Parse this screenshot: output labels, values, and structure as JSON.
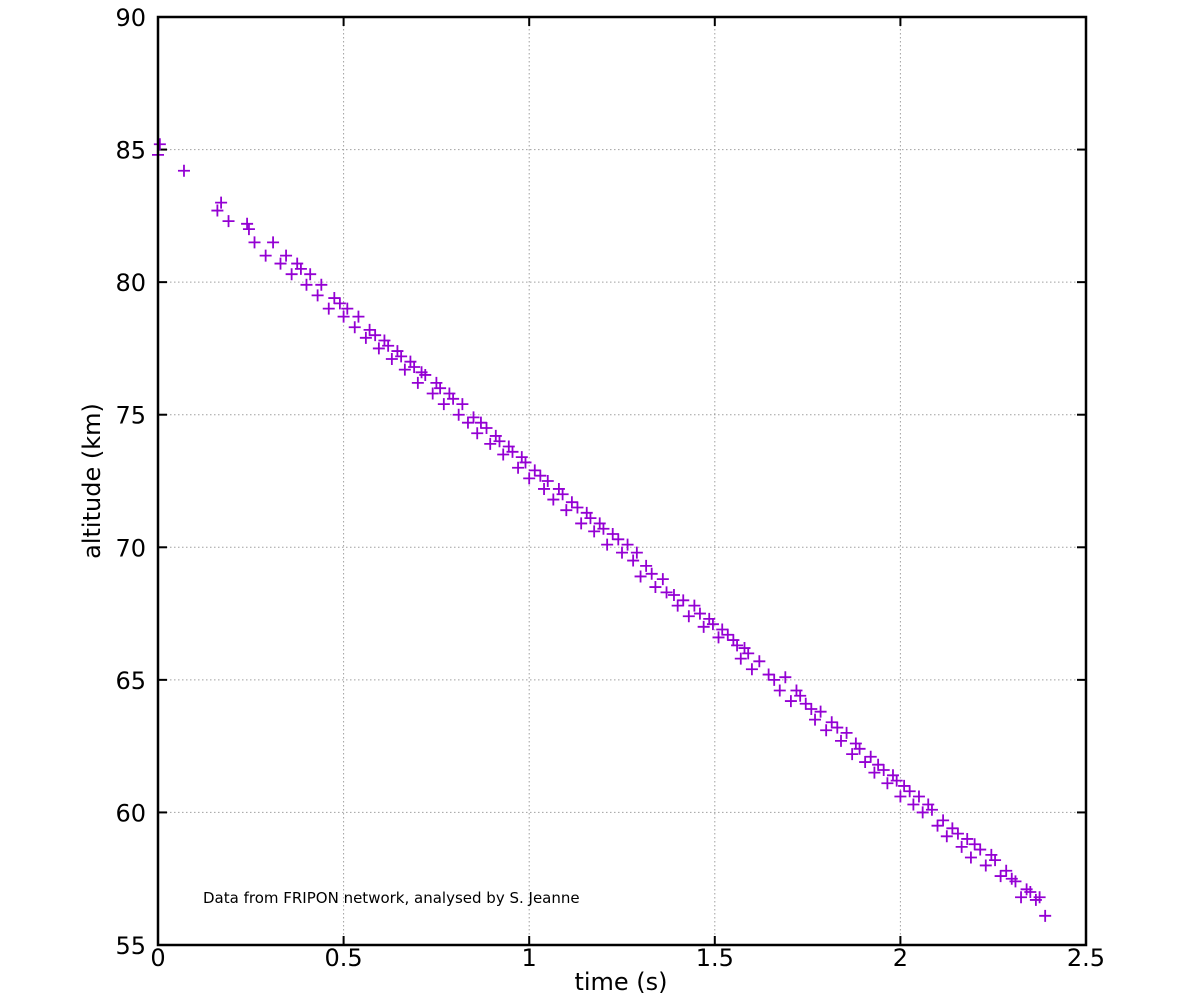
{
  "chart_data": {
    "type": "scatter",
    "title": "",
    "xlabel": "time (s)",
    "ylabel": "altitude (km)",
    "xlim": [
      0,
      2.5
    ],
    "ylim": [
      55,
      90
    ],
    "xticks": [
      0,
      0.5,
      1,
      1.5,
      2,
      2.5
    ],
    "xtick_labels": [
      "0",
      "0.5",
      "1",
      "1.5",
      "2",
      "2.5"
    ],
    "yticks": [
      55,
      60,
      65,
      70,
      75,
      80,
      85,
      90
    ],
    "ytick_labels": [
      "55",
      "60",
      "65",
      "70",
      "75",
      "80",
      "85",
      "90"
    ],
    "grid": true,
    "marker": "plus",
    "color": "#9400d3",
    "annotation": "Data from FRIPON network, analysed by S. Jeanne",
    "series": [
      {
        "points": [
          [
            0.0,
            84.8
          ],
          [
            0.005,
            85.2
          ],
          [
            0.07,
            84.2
          ],
          [
            0.16,
            82.7
          ],
          [
            0.17,
            83.0
          ],
          [
            0.19,
            82.3
          ],
          [
            0.24,
            82.2
          ],
          [
            0.245,
            82.0
          ],
          [
            0.26,
            81.5
          ],
          [
            0.29,
            81.0
          ],
          [
            0.31,
            81.5
          ],
          [
            0.33,
            80.7
          ],
          [
            0.345,
            81.0
          ],
          [
            0.36,
            80.3
          ],
          [
            0.375,
            80.7
          ],
          [
            0.385,
            80.5
          ],
          [
            0.4,
            79.9
          ],
          [
            0.41,
            80.3
          ],
          [
            0.43,
            79.5
          ],
          [
            0.44,
            79.9
          ],
          [
            0.46,
            79.0
          ],
          [
            0.475,
            79.4
          ],
          [
            0.49,
            79.2
          ],
          [
            0.5,
            78.7
          ],
          [
            0.51,
            79.0
          ],
          [
            0.53,
            78.3
          ],
          [
            0.54,
            78.7
          ],
          [
            0.56,
            77.9
          ],
          [
            0.57,
            78.2
          ],
          [
            0.585,
            78.0
          ],
          [
            0.595,
            77.5
          ],
          [
            0.61,
            77.8
          ],
          [
            0.62,
            77.6
          ],
          [
            0.63,
            77.1
          ],
          [
            0.645,
            77.4
          ],
          [
            0.655,
            77.2
          ],
          [
            0.665,
            76.7
          ],
          [
            0.68,
            77.0
          ],
          [
            0.69,
            76.8
          ],
          [
            0.7,
            76.2
          ],
          [
            0.71,
            76.6
          ],
          [
            0.72,
            76.5
          ],
          [
            0.74,
            75.8
          ],
          [
            0.75,
            76.2
          ],
          [
            0.76,
            76.0
          ],
          [
            0.77,
            75.4
          ],
          [
            0.785,
            75.8
          ],
          [
            0.795,
            75.6
          ],
          [
            0.81,
            75.0
          ],
          [
            0.82,
            75.4
          ],
          [
            0.835,
            74.7
          ],
          [
            0.85,
            74.9
          ],
          [
            0.86,
            74.3
          ],
          [
            0.87,
            74.7
          ],
          [
            0.885,
            74.5
          ],
          [
            0.895,
            73.9
          ],
          [
            0.91,
            74.2
          ],
          [
            0.92,
            74.0
          ],
          [
            0.93,
            73.5
          ],
          [
            0.945,
            73.8
          ],
          [
            0.955,
            73.6
          ],
          [
            0.97,
            73.0
          ],
          [
            0.98,
            73.4
          ],
          [
            0.99,
            73.2
          ],
          [
            1.0,
            72.6
          ],
          [
            1.015,
            72.9
          ],
          [
            1.03,
            72.7
          ],
          [
            1.04,
            72.2
          ],
          [
            1.05,
            72.5
          ],
          [
            1.065,
            71.8
          ],
          [
            1.08,
            72.2
          ],
          [
            1.09,
            72.0
          ],
          [
            1.1,
            71.4
          ],
          [
            1.115,
            71.7
          ],
          [
            1.13,
            71.5
          ],
          [
            1.14,
            70.9
          ],
          [
            1.155,
            71.3
          ],
          [
            1.165,
            71.1
          ],
          [
            1.175,
            70.6
          ],
          [
            1.19,
            70.9
          ],
          [
            1.2,
            70.7
          ],
          [
            1.21,
            70.1
          ],
          [
            1.225,
            70.5
          ],
          [
            1.24,
            70.3
          ],
          [
            1.25,
            69.8
          ],
          [
            1.265,
            70.1
          ],
          [
            1.28,
            69.5
          ],
          [
            1.29,
            69.8
          ],
          [
            1.3,
            68.9
          ],
          [
            1.315,
            69.3
          ],
          [
            1.33,
            69.0
          ],
          [
            1.34,
            68.5
          ],
          [
            1.36,
            68.8
          ],
          [
            1.37,
            68.3
          ],
          [
            1.39,
            68.2
          ],
          [
            1.4,
            67.8
          ],
          [
            1.415,
            68.0
          ],
          [
            1.43,
            67.4
          ],
          [
            1.445,
            67.8
          ],
          [
            1.46,
            67.5
          ],
          [
            1.47,
            67.0
          ],
          [
            1.485,
            67.3
          ],
          [
            1.495,
            67.1
          ],
          [
            1.51,
            66.6
          ],
          [
            1.52,
            66.9
          ],
          [
            1.535,
            66.7
          ],
          [
            1.55,
            66.5
          ],
          [
            1.56,
            66.3
          ],
          [
            1.57,
            65.8
          ],
          [
            1.58,
            66.2
          ],
          [
            1.59,
            66.0
          ],
          [
            1.6,
            65.4
          ],
          [
            1.62,
            65.7
          ],
          [
            1.645,
            65.2
          ],
          [
            1.66,
            65.0
          ],
          [
            1.675,
            64.6
          ],
          [
            1.69,
            65.1
          ],
          [
            1.705,
            64.2
          ],
          [
            1.72,
            64.6
          ],
          [
            1.73,
            64.4
          ],
          [
            1.745,
            64.1
          ],
          [
            1.76,
            63.9
          ],
          [
            1.77,
            63.5
          ],
          [
            1.785,
            63.8
          ],
          [
            1.8,
            63.1
          ],
          [
            1.815,
            63.4
          ],
          [
            1.83,
            63.2
          ],
          [
            1.84,
            62.7
          ],
          [
            1.855,
            63.0
          ],
          [
            1.87,
            62.2
          ],
          [
            1.88,
            62.6
          ],
          [
            1.89,
            62.4
          ],
          [
            1.905,
            61.9
          ],
          [
            1.92,
            62.1
          ],
          [
            1.93,
            61.5
          ],
          [
            1.94,
            61.8
          ],
          [
            1.955,
            61.6
          ],
          [
            1.965,
            61.1
          ],
          [
            1.98,
            61.4
          ],
          [
            1.99,
            61.2
          ],
          [
            2.0,
            60.6
          ],
          [
            2.01,
            61.0
          ],
          [
            2.025,
            60.8
          ],
          [
            2.035,
            60.3
          ],
          [
            2.05,
            60.6
          ],
          [
            2.06,
            60.0
          ],
          [
            2.075,
            60.3
          ],
          [
            2.085,
            60.1
          ],
          [
            2.1,
            59.5
          ],
          [
            2.115,
            59.7
          ],
          [
            2.125,
            59.1
          ],
          [
            2.14,
            59.4
          ],
          [
            2.155,
            59.2
          ],
          [
            2.165,
            58.7
          ],
          [
            2.18,
            59.0
          ],
          [
            2.19,
            58.3
          ],
          [
            2.2,
            58.8
          ],
          [
            2.215,
            58.6
          ],
          [
            2.23,
            58.0
          ],
          [
            2.245,
            58.4
          ],
          [
            2.255,
            58.2
          ],
          [
            2.27,
            57.6
          ],
          [
            2.285,
            57.8
          ],
          [
            2.3,
            57.5
          ],
          [
            2.31,
            57.4
          ],
          [
            2.325,
            56.8
          ],
          [
            2.34,
            57.1
          ],
          [
            2.35,
            57.0
          ],
          [
            2.365,
            56.7
          ],
          [
            2.375,
            56.8
          ],
          [
            2.39,
            56.1
          ]
        ]
      }
    ]
  }
}
